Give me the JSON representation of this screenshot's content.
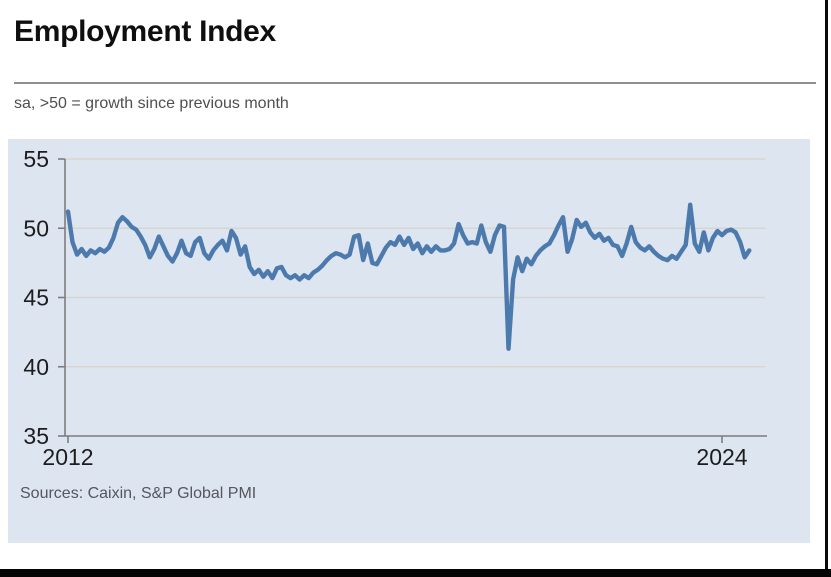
{
  "header": {
    "title": "Employment Index",
    "subtitle": "sa, >50 = growth since previous month",
    "source": "Sources: Caixin, S&P Global PMI"
  },
  "chart_data": {
    "type": "line",
    "title": "Employment Index",
    "subtitle": "sa, >50 = growth since previous month",
    "source_note": "Sources: Caixin, S&P Global PMI",
    "x_axis": {
      "start_year": 2012,
      "frequency": "monthly",
      "tick_labels": [
        "2012",
        "2024"
      ]
    },
    "x_ticks": [
      {
        "label": "2012",
        "year": 2012
      },
      {
        "label": "2024",
        "year": 2024
      }
    ],
    "y_ticks": [
      55,
      50,
      45,
      40,
      35
    ],
    "ylim": [
      35,
      55
    ],
    "grid": true,
    "legend_position": "none",
    "reference_level": 50,
    "notable_points": {
      "min": {
        "date": "2020-02",
        "value": 41.3
      },
      "max": {
        "date": "2023-06",
        "value": 51.7
      }
    },
    "series": [
      {
        "name": "Employment Index (sa)",
        "start": "2012-01",
        "values": [
          51.2,
          49.0,
          48.1,
          48.5,
          48.0,
          48.4,
          48.2,
          48.5,
          48.3,
          48.6,
          49.3,
          50.4,
          50.8,
          50.5,
          50.1,
          49.9,
          49.4,
          48.8,
          47.9,
          48.5,
          49.4,
          48.7,
          48.0,
          47.6,
          48.2,
          49.1,
          48.2,
          48.0,
          49.0,
          49.3,
          48.2,
          47.8,
          48.4,
          48.8,
          49.1,
          48.4,
          49.8,
          49.3,
          48.1,
          48.7,
          47.2,
          46.7,
          47.0,
          46.5,
          46.9,
          46.4,
          47.1,
          47.2,
          46.6,
          46.4,
          46.6,
          46.3,
          46.6,
          46.4,
          46.8,
          47.0,
          47.3,
          47.7,
          48.0,
          48.2,
          48.1,
          47.9,
          48.1,
          49.4,
          49.5,
          47.7,
          48.9,
          47.5,
          47.4,
          48.0,
          48.6,
          49.0,
          48.8,
          49.4,
          48.8,
          49.3,
          48.5,
          48.9,
          48.2,
          48.7,
          48.3,
          48.7,
          48.4,
          48.4,
          48.5,
          48.9,
          50.3,
          49.5,
          48.9,
          49.0,
          48.9,
          50.2,
          49.0,
          48.3,
          49.5,
          50.2,
          50.1,
          41.3,
          46.3,
          47.9,
          46.9,
          47.8,
          47.4,
          48.0,
          48.4,
          48.7,
          48.9,
          49.5,
          50.2,
          50.8,
          48.3,
          49.2,
          50.6,
          50.1,
          50.4,
          49.7,
          49.3,
          49.6,
          49.1,
          49.3,
          48.8,
          48.7,
          48.0,
          48.9,
          50.1,
          49.0,
          48.6,
          48.4,
          48.7,
          48.3,
          48.0,
          47.8,
          47.7,
          48.0,
          47.8,
          48.3,
          48.8,
          51.7,
          48.9,
          48.3,
          49.7,
          48.4,
          49.3,
          49.8,
          49.5,
          49.8,
          49.9,
          49.7,
          49.0,
          47.9,
          48.4
        ]
      }
    ],
    "colors": {
      "line": "#4d7aad",
      "panel_bg": "#dde5f1",
      "grid": "#d6d6cf",
      "axis": "#7d7d7d",
      "tick_text": "#1d1d1f",
      "title_text": "#0f0f10",
      "muted_text": "#4f4f4f"
    }
  }
}
